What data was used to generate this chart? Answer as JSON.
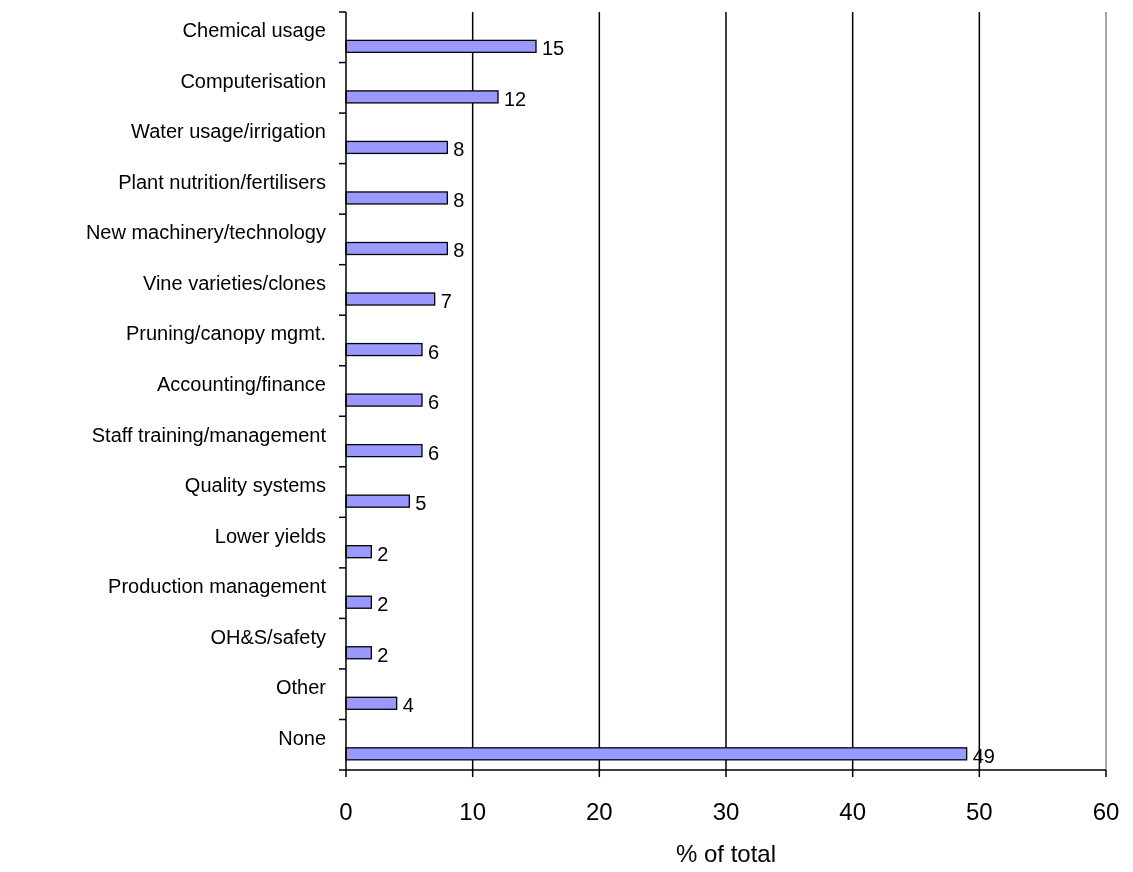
{
  "chart_data": {
    "type": "bar",
    "orientation": "horizontal",
    "xlabel": "% of total",
    "categories": [
      "Chemical usage",
      "Computerisation",
      "Water usage/irrigation",
      "Plant nutrition/fertilisers",
      "New machinery/technology",
      "Vine varieties/clones",
      "Pruning/canopy mgmt.",
      "Accounting/finance",
      "Staff training/management",
      "Quality systems",
      "Lower yields",
      "Production management",
      "OH&S/safety",
      "Other",
      "None"
    ],
    "values": [
      15,
      12,
      8,
      8,
      8,
      7,
      6,
      6,
      6,
      5,
      2,
      2,
      2,
      4,
      49
    ],
    "color": "#9999ff",
    "xlim": [
      0,
      60
    ],
    "xticks": [
      0,
      10,
      20,
      30,
      40,
      50,
      60
    ],
    "grid": "x",
    "data_labels": true
  }
}
